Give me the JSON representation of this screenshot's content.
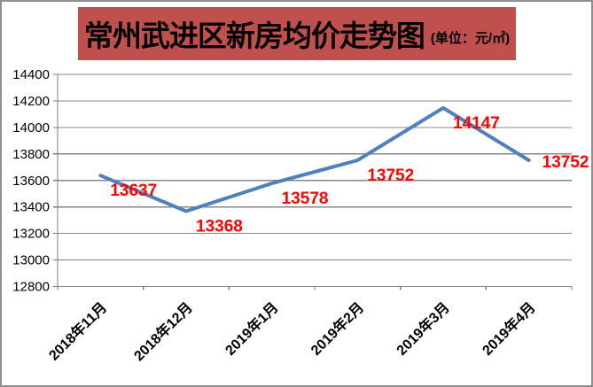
{
  "colors": {
    "title_bg": "#c0504d",
    "title_text": "#000000",
    "line": "#4f81bd",
    "data_label": "#ff0000",
    "grid": "#878787",
    "axis": "#7f7f7f",
    "tick_text": "#000000",
    "frame_border": "#8f8f8f"
  },
  "chart_data": {
    "type": "line",
    "title": "常州武进区新房均价走势图",
    "unit_label": "(单位：元/㎡)",
    "categories": [
      "2018年11月",
      "2018年12月",
      "2019年1月",
      "2019年2月",
      "2019年3月",
      "2019年4月"
    ],
    "values": [
      13637,
      13368,
      13578,
      13752,
      14147,
      13752
    ],
    "xlabel": "",
    "ylabel": "",
    "ylim": [
      12800,
      14400
    ],
    "y_ticks": [
      12800,
      13000,
      13200,
      13400,
      13600,
      13800,
      14000,
      14200,
      14400
    ],
    "y_tick_step": 200,
    "grid": true,
    "legend": "none",
    "data_labels_shown": true,
    "x_labels_rotation_deg": -45
  }
}
